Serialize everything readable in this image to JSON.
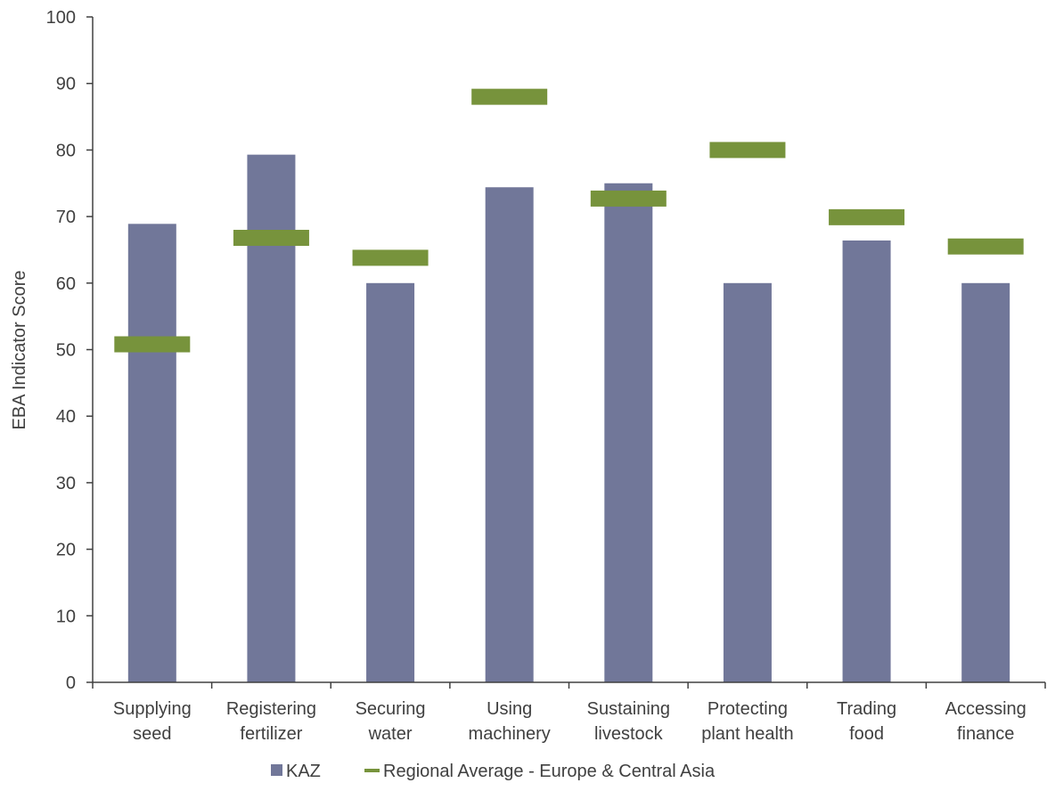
{
  "chart_data": {
    "type": "bar",
    "ylabel": "EBA Indicator Score",
    "ylim": [
      0,
      100
    ],
    "yticks": [
      0,
      10,
      20,
      30,
      40,
      50,
      60,
      70,
      80,
      90,
      100
    ],
    "categories": [
      [
        "Supplying",
        "seed"
      ],
      [
        "Registering",
        "fertilizer"
      ],
      [
        "Securing",
        "water"
      ],
      [
        "Using",
        "machinery"
      ],
      [
        "Sustaining",
        "livestock"
      ],
      [
        "Protecting",
        "plant health"
      ],
      [
        "Trading",
        "food"
      ],
      [
        "Accessing",
        "finance"
      ]
    ],
    "series": [
      {
        "name": "KAZ",
        "kind": "bar",
        "color": "#717799",
        "values": [
          68.9,
          79.3,
          60.0,
          74.4,
          75.0,
          60.0,
          66.4,
          60.0
        ]
      },
      {
        "name": "Regional Average - Europe & Central Asia",
        "kind": "marker",
        "color": "#77933c",
        "values": [
          50.8,
          66.8,
          63.8,
          88.0,
          72.7,
          80.0,
          69.9,
          65.5
        ]
      }
    ],
    "legend_position": "bottom-center",
    "grid": false
  }
}
